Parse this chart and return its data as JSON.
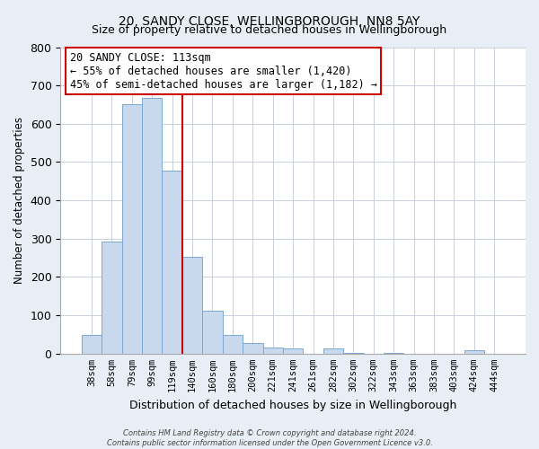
{
  "title": "20, SANDY CLOSE, WELLINGBOROUGH, NN8 5AY",
  "subtitle": "Size of property relative to detached houses in Wellingborough",
  "xlabel": "Distribution of detached houses by size in Wellingborough",
  "ylabel": "Number of detached properties",
  "bar_labels": [
    "38sqm",
    "58sqm",
    "79sqm",
    "99sqm",
    "119sqm",
    "140sqm",
    "160sqm",
    "180sqm",
    "200sqm",
    "221sqm",
    "241sqm",
    "261sqm",
    "282sqm",
    "302sqm",
    "322sqm",
    "343sqm",
    "363sqm",
    "383sqm",
    "403sqm",
    "424sqm",
    "444sqm"
  ],
  "bar_values": [
    48,
    293,
    652,
    668,
    478,
    253,
    113,
    48,
    28,
    15,
    13,
    0,
    13,
    3,
    0,
    3,
    0,
    0,
    0,
    8,
    0
  ],
  "bar_color": "#c8d9ee",
  "bar_edge_color": "#7aa8d4",
  "vline_x": 4.5,
  "vline_color": "#cc0000",
  "annotation_line1": "20 SANDY CLOSE: 113sqm",
  "annotation_line2": "← 55% of detached houses are smaller (1,420)",
  "annotation_line3": "45% of semi-detached houses are larger (1,182) →",
  "ylim": [
    0,
    800
  ],
  "yticks": [
    0,
    100,
    200,
    300,
    400,
    500,
    600,
    700,
    800
  ],
  "footer_text": "Contains HM Land Registry data © Crown copyright and database right 2024.\nContains public sector information licensed under the Open Government Licence v3.0.",
  "bg_color": "#e8eef5",
  "plot_bg_color": "#ffffff",
  "grid_color": "#c8d0dc"
}
